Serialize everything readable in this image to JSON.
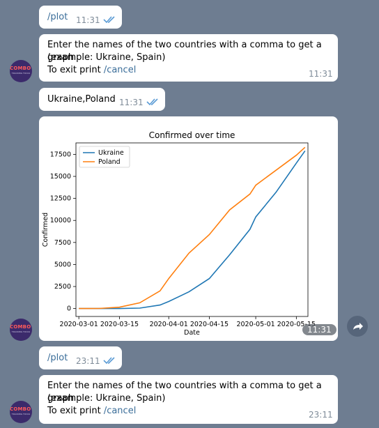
{
  "messages": {
    "m1": {
      "text": "/plot",
      "time": "11:31"
    },
    "m2": {
      "line1": "Enter the names of the two countries with a comma to get a graph",
      "line2": "(example: Ukraine, Spain)",
      "line3_prefix": "To exit print ",
      "line3_cmd": "/cancel",
      "time": "11:31"
    },
    "m3": {
      "text": "Ukraine,Poland",
      "time": "11:31"
    },
    "m4": {
      "time": "11:31"
    },
    "m5": {
      "text": "/plot",
      "time": "23:11"
    },
    "m6": {
      "line1": "Enter the names of the two countries with a comma to get a graph",
      "line2": "(example: Ukraine, Spain)",
      "line3_prefix": "To exit print ",
      "line3_cmd": "/cancel",
      "time": "23:11"
    }
  },
  "bot_avatar": {
    "logo": "COMBOT",
    "sub": "TRACKING TOOLS"
  },
  "icons": {
    "read": "double-check-icon",
    "share": "share-arrow-icon"
  },
  "chart_data": {
    "type": "line",
    "title": "Confirmed over time",
    "xlabel": "Date",
    "ylabel": "Confirmed",
    "x": [
      "2020-03-01",
      "2020-03-08",
      "2020-03-15",
      "2020-03-22",
      "2020-03-29",
      "2020-04-01",
      "2020-04-08",
      "2020-04-15",
      "2020-04-22",
      "2020-04-29",
      "2020-05-01",
      "2020-05-08",
      "2020-05-15",
      "2020-05-18"
    ],
    "xticks": [
      "2020-03-01",
      "2020-03-15",
      "2020-04-01",
      "2020-04-15",
      "2020-05-01",
      "2020-05-15"
    ],
    "ylim": [
      -900,
      18800
    ],
    "yticks": [
      0,
      2500,
      5000,
      7500,
      10000,
      12500,
      15000,
      17500
    ],
    "series": [
      {
        "name": "Ukraine",
        "color": "#1f77b4",
        "values": [
          0,
          1,
          3,
          50,
          400,
          800,
          1900,
          3400,
          6100,
          9000,
          10400,
          13200,
          16500,
          17900
        ]
      },
      {
        "name": "Poland",
        "color": "#ff7f0e",
        "values": [
          0,
          10,
          150,
          650,
          2000,
          3400,
          6300,
          8400,
          11200,
          13000,
          14000,
          15700,
          17400,
          18300
        ]
      }
    ],
    "legend": "upper left",
    "grid": false
  }
}
